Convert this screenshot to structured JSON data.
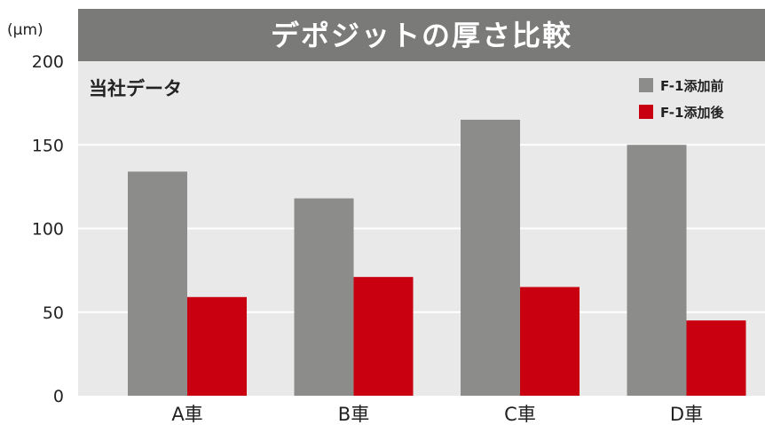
{
  "chart_data": {
    "type": "bar",
    "title": "デポジットの厚さ比較",
    "subtitle": "当社データ",
    "unit_label": "(μm)",
    "categories": [
      "A車",
      "B車",
      "C車",
      "D車"
    ],
    "series": [
      {
        "name": "F-1添加前",
        "values": [
          134,
          118,
          165,
          150
        ],
        "color": "#8c8c8a"
      },
      {
        "name": "F-1添加後",
        "values": [
          59,
          71,
          65,
          45
        ],
        "color": "#c8000f"
      }
    ],
    "ylim": [
      0,
      200
    ],
    "yticks": [
      0,
      50,
      100,
      150,
      200
    ],
    "grid": true,
    "legend_position": "top-right"
  }
}
